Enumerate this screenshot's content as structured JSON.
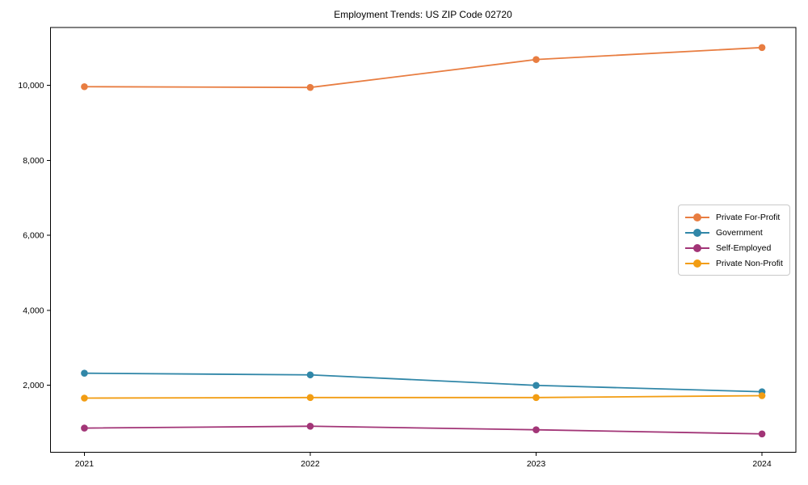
{
  "chart_data": {
    "type": "line",
    "title": "Employment Trends: US ZIP Code 02720",
    "xlabel": "",
    "ylabel": "",
    "x": [
      2021,
      2022,
      2023,
      2024
    ],
    "x_tick_labels": [
      "2021",
      "2022",
      "2023",
      "2024"
    ],
    "y_ticks": [
      2000,
      4000,
      6000,
      8000,
      10000
    ],
    "y_tick_labels": [
      "2,000",
      "4,000",
      "6,000",
      "8,000",
      "10,000"
    ],
    "xlim": [
      2020.85,
      2024.15
    ],
    "ylim": [
      210,
      11545
    ],
    "grid": false,
    "legend_position": "center right",
    "marker": "circle",
    "series": [
      {
        "name": "Private For-Profit",
        "color": "#e87d41",
        "values": [
          9965,
          9945,
          10690,
          11010
        ]
      },
      {
        "name": "Government",
        "color": "#3187a8",
        "values": [
          2320,
          2275,
          1995,
          1825
        ]
      },
      {
        "name": "Self-Employed",
        "color": "#a23577",
        "values": [
          855,
          905,
          810,
          700
        ]
      },
      {
        "name": "Private Non-Profit",
        "color": "#f29d13",
        "values": [
          1655,
          1670,
          1670,
          1720
        ]
      }
    ]
  }
}
